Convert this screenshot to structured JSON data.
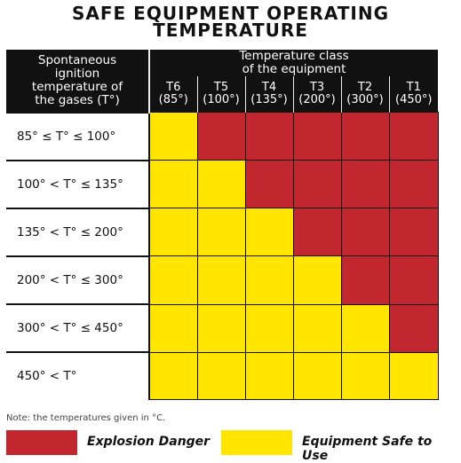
{
  "title": {
    "line1": "SAFE EQUIPMENT OPERATING",
    "line2": "TEMPERATURE"
  },
  "table": {
    "left_header": [
      "Spontaneous",
      "ignition",
      "temperature of",
      "the gases (T°)"
    ],
    "class_header": [
      "Temperature class",
      "of the equipment"
    ],
    "columns": [
      {
        "code": "T6",
        "temp": "(85°)"
      },
      {
        "code": "T5",
        "temp": "(100°)"
      },
      {
        "code": "T4",
        "temp": "(135°)"
      },
      {
        "code": "T3",
        "temp": "(200°)"
      },
      {
        "code": "T2",
        "temp": "(300°)"
      },
      {
        "code": "T1",
        "temp": "(450°)"
      }
    ],
    "rows": [
      {
        "range": "85° ≤ T° ≤ 100°",
        "cells": [
          "safe",
          "danger",
          "danger",
          "danger",
          "danger",
          "danger"
        ]
      },
      {
        "range": "100° < T° ≤ 135°",
        "cells": [
          "safe",
          "safe",
          "danger",
          "danger",
          "danger",
          "danger"
        ]
      },
      {
        "range": "135° < T° ≤ 200°",
        "cells": [
          "safe",
          "safe",
          "safe",
          "danger",
          "danger",
          "danger"
        ]
      },
      {
        "range": "200° < T° ≤ 300°",
        "cells": [
          "safe",
          "safe",
          "safe",
          "safe",
          "danger",
          "danger"
        ]
      },
      {
        "range": "300° < T° ≤ 450°",
        "cells": [
          "safe",
          "safe",
          "safe",
          "safe",
          "safe",
          "danger"
        ]
      },
      {
        "range": "450° < T°",
        "cells": [
          "safe",
          "safe",
          "safe",
          "safe",
          "safe",
          "safe"
        ]
      }
    ]
  },
  "note": "Note: the temperatures given in °C.",
  "legend": {
    "danger_label": "Explosion Danger",
    "safe_label": "Equipment Safe to Use"
  },
  "colors": {
    "danger": "#c2262e",
    "safe": "#ffe500",
    "header_bg": "#111111"
  }
}
